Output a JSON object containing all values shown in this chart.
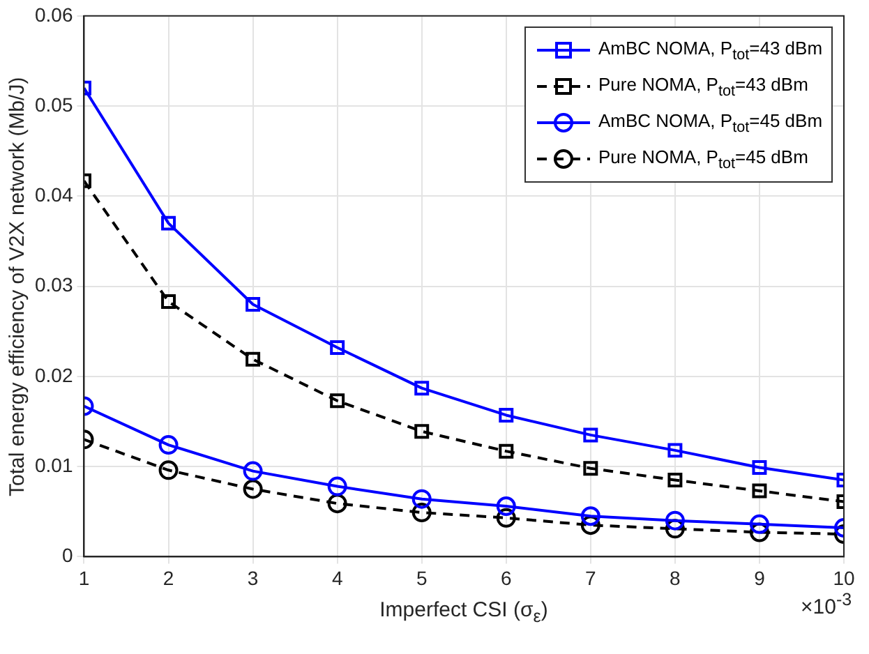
{
  "chart_data": {
    "type": "line",
    "xlabel": "Imperfect CSI (σ$_{ε}$)",
    "ylabel": "Total energy efficiency of V2X network (Mb/J)",
    "x": [
      1,
      2,
      3,
      4,
      5,
      6,
      7,
      8,
      9,
      10
    ],
    "xlim": [
      1,
      10
    ],
    "xticks": [
      1,
      2,
      3,
      4,
      5,
      6,
      7,
      8,
      9,
      10
    ],
    "ylim": [
      0,
      0.06
    ],
    "yticks": [
      0,
      0.01,
      0.02,
      0.03,
      0.04,
      0.05,
      0.06
    ],
    "annotations": [
      "×10$^{-3}$"
    ],
    "grid": true,
    "legend": "top right",
    "series": [
      {
        "name": "AmBC NOMA, P$_{tot}$=43 dBm",
        "color": "#0000ff",
        "marker": "square",
        "line_style": "solid",
        "values": [
          0.052,
          0.037,
          0.028,
          0.0232,
          0.0187,
          0.0157,
          0.0135,
          0.0118,
          0.0099,
          0.0085
        ]
      },
      {
        "name": "Pure NOMA, P$_{tot}$=43 dBm",
        "color": "#000000",
        "marker": "square",
        "line_style": "dashed",
        "values": [
          0.0417,
          0.0283,
          0.0219,
          0.0173,
          0.0139,
          0.0117,
          0.0098,
          0.0085,
          0.0073,
          0.0061
        ]
      },
      {
        "name": "AmBC NOMA, P$_{tot}$=45 dBm",
        "color": "#0000ff",
        "marker": "circle",
        "line_style": "solid",
        "values": [
          0.0167,
          0.0124,
          0.0095,
          0.0078,
          0.0064,
          0.0056,
          0.0045,
          0.004,
          0.0036,
          0.0032
        ]
      },
      {
        "name": "Pure NOMA, P$_{tot}$=45 dBm",
        "color": "#000000",
        "marker": "circle",
        "line_style": "dashed",
        "values": [
          0.013,
          0.0096,
          0.0075,
          0.0059,
          0.0049,
          0.0043,
          0.0035,
          0.0031,
          0.0027,
          0.0025
        ]
      }
    ]
  }
}
